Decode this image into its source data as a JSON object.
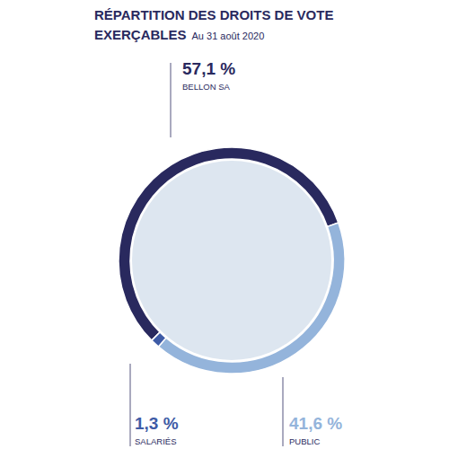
{
  "chart_data": {
    "type": "pie",
    "title": "RÉPARTITION DES DROITS DE VOTE EXERÇABLES",
    "subtitle": "Au 31 août 2020",
    "categories": [
      "BELLON SA",
      "PUBLIC",
      "SALARIÉS"
    ],
    "values": [
      57.1,
      41.6,
      1.3
    ],
    "value_labels": [
      "57,1 %",
      "41,6 %",
      "1,3 %"
    ],
    "colors": [
      "#29295e",
      "#94b4db",
      "#3e5ba6"
    ],
    "data_labels": true
  }
}
